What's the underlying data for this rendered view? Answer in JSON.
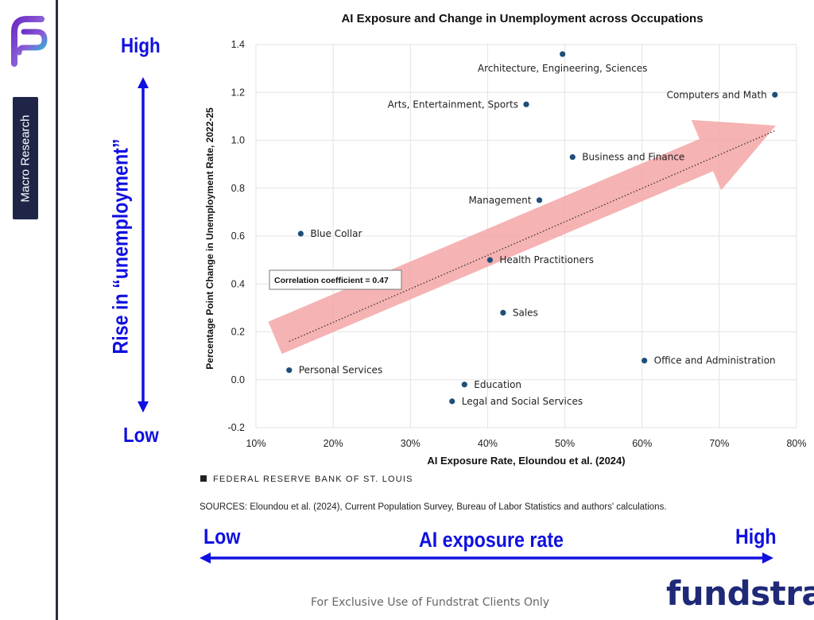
{
  "sidebar": {
    "section_label": "Macro Research"
  },
  "annotations": {
    "vertical": {
      "high": "High",
      "low": "Low",
      "label": "Rise in “unemployment”"
    },
    "horizontal": {
      "high": "High",
      "low": "Low",
      "label": "AI exposure rate"
    },
    "arrow_color": "#1010e0"
  },
  "chart_data": {
    "type": "scatter",
    "title": "AI Exposure and Change in Unemployment across Occupations",
    "xlabel": "AI Exposure Rate, Eloundou et al. (2024)",
    "ylabel": "Percentage Point Change in Unemployment Rate, 2022-25",
    "xlim": [
      0.1,
      0.8
    ],
    "ylim": [
      -0.2,
      1.4
    ],
    "x_ticks": [
      "10%",
      "20%",
      "30%",
      "40%",
      "50%",
      "60%",
      "70%",
      "80%"
    ],
    "x_tick_values": [
      0.1,
      0.2,
      0.3,
      0.4,
      0.5,
      0.6,
      0.7,
      0.8
    ],
    "y_ticks": [
      "-0.2",
      "0.0",
      "0.2",
      "0.4",
      "0.6",
      "0.8",
      "1.0",
      "1.2",
      "1.4"
    ],
    "y_tick_values": [
      -0.2,
      0.0,
      0.2,
      0.4,
      0.6,
      0.8,
      1.0,
      1.2,
      1.4
    ],
    "grid": true,
    "point_color": "#1f4e79",
    "points": [
      {
        "label": "Architecture, Engineering, Sciences",
        "x": 0.497,
        "y": 1.36,
        "label_pos": "below"
      },
      {
        "label": "Computers and Math",
        "x": 0.772,
        "y": 1.19,
        "label_pos": "left"
      },
      {
        "label": "Arts, Entertainment, Sports",
        "x": 0.45,
        "y": 1.15,
        "label_pos": "left"
      },
      {
        "label": "Business and Finance",
        "x": 0.51,
        "y": 0.93,
        "label_pos": "right"
      },
      {
        "label": "Management",
        "x": 0.467,
        "y": 0.75,
        "label_pos": "left"
      },
      {
        "label": "Blue Collar",
        "x": 0.158,
        "y": 0.61,
        "label_pos": "right"
      },
      {
        "label": "Health Practitioners",
        "x": 0.403,
        "y": 0.5,
        "label_pos": "right"
      },
      {
        "label": "Sales",
        "x": 0.42,
        "y": 0.28,
        "label_pos": "right"
      },
      {
        "label": "Office and Administration",
        "x": 0.603,
        "y": 0.08,
        "label_pos": "right"
      },
      {
        "label": "Personal Services",
        "x": 0.143,
        "y": 0.04,
        "label_pos": "right"
      },
      {
        "label": "Education",
        "x": 0.37,
        "y": -0.02,
        "label_pos": "right"
      },
      {
        "label": "Legal and Social Services",
        "x": 0.354,
        "y": -0.09,
        "label_pos": "right"
      }
    ],
    "trendline": {
      "x": [
        0.143,
        0.772
      ],
      "y": [
        0.16,
        1.04
      ],
      "style": "dotted"
    },
    "trend_arrow_color": "#f4a6a6",
    "annotation_box": "Correlation coefficient = 0.47",
    "legend_source": "FEDERAL RESERVE BANK OF ST. LOUIS",
    "sources": "SOURCES: Eloundou et al. (2024), Current Population Survey, Bureau of Labor Statistics and authors' calculations."
  },
  "footer": {
    "note": "For Exclusive Use of Fundstrat Clients Only",
    "brand": "fundstrat",
    "brand_color": "#1e2a78"
  }
}
